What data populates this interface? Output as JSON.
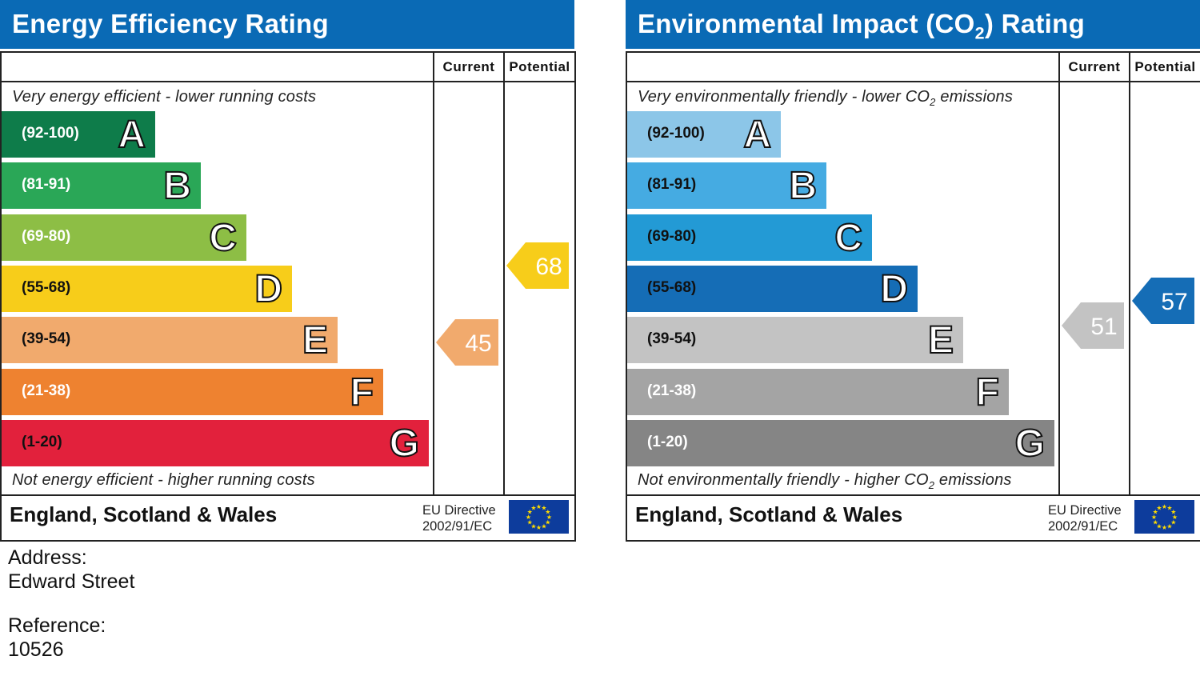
{
  "address_label": "Address:",
  "address_value": "Edward Street",
  "reference_label": "Reference:",
  "reference_value": "10526",
  "chart_data": [
    {
      "type": "bar",
      "title": "Energy Efficiency Rating",
      "column_headers": [
        "Current",
        "Potential"
      ],
      "top_note": "Very energy efficient - lower running costs",
      "bottom_note": "Not energy efficient - higher running costs",
      "footer_region": "England, Scotland & Wales",
      "footer_directive_line1": "EU Directive",
      "footer_directive_line2": "2002/91/EC",
      "bands": [
        {
          "range": "(92-100)",
          "letter": "A",
          "color": "#0e7c4a"
        },
        {
          "range": "(81-91)",
          "letter": "B",
          "color": "#2aa757"
        },
        {
          "range": "(69-80)",
          "letter": "C",
          "color": "#8dbe45"
        },
        {
          "range": "(55-68)",
          "letter": "D",
          "color": "#f7cd1a"
        },
        {
          "range": "(39-54)",
          "letter": "E",
          "color": "#f1aa6d"
        },
        {
          "range": "(21-38)",
          "letter": "F",
          "color": "#ee8230"
        },
        {
          "range": "(1-20)",
          "letter": "G",
          "color": "#e2213c"
        }
      ],
      "current": {
        "value": 45,
        "color": "#f1aa6d"
      },
      "potential": {
        "value": 68,
        "color": "#f7cd1a"
      }
    },
    {
      "type": "bar",
      "title_pre": "Environmental Impact (CO",
      "title_sub": "2",
      "title_post": ") Rating",
      "column_headers": [
        "Current",
        "Potential"
      ],
      "top_note_pre": "Very environmentally friendly - lower CO",
      "top_note_sub": "2",
      "top_note_post": " emissions",
      "bottom_note_pre": "Not environmentally friendly - higher CO",
      "bottom_note_sub": "2",
      "bottom_note_post": " emissions",
      "footer_region": "England, Scotland & Wales",
      "footer_directive_line1": "EU Directive",
      "footer_directive_line2": "2002/91/EC",
      "bands": [
        {
          "range": "(92-100)",
          "letter": "A",
          "color": "#8cc6e8"
        },
        {
          "range": "(81-91)",
          "letter": "B",
          "color": "#45abe2"
        },
        {
          "range": "(69-80)",
          "letter": "C",
          "color": "#239ad5"
        },
        {
          "range": "(55-68)",
          "letter": "D",
          "color": "#156db6"
        },
        {
          "range": "(39-54)",
          "letter": "E",
          "color": "#c3c3c3"
        },
        {
          "range": "(21-38)",
          "letter": "F",
          "color": "#a4a4a4"
        },
        {
          "range": "(1-20)",
          "letter": "G",
          "color": "#858585"
        }
      ],
      "current": {
        "value": 51,
        "color": "#c3c3c3"
      },
      "potential": {
        "value": 57,
        "color": "#156db6"
      }
    }
  ]
}
